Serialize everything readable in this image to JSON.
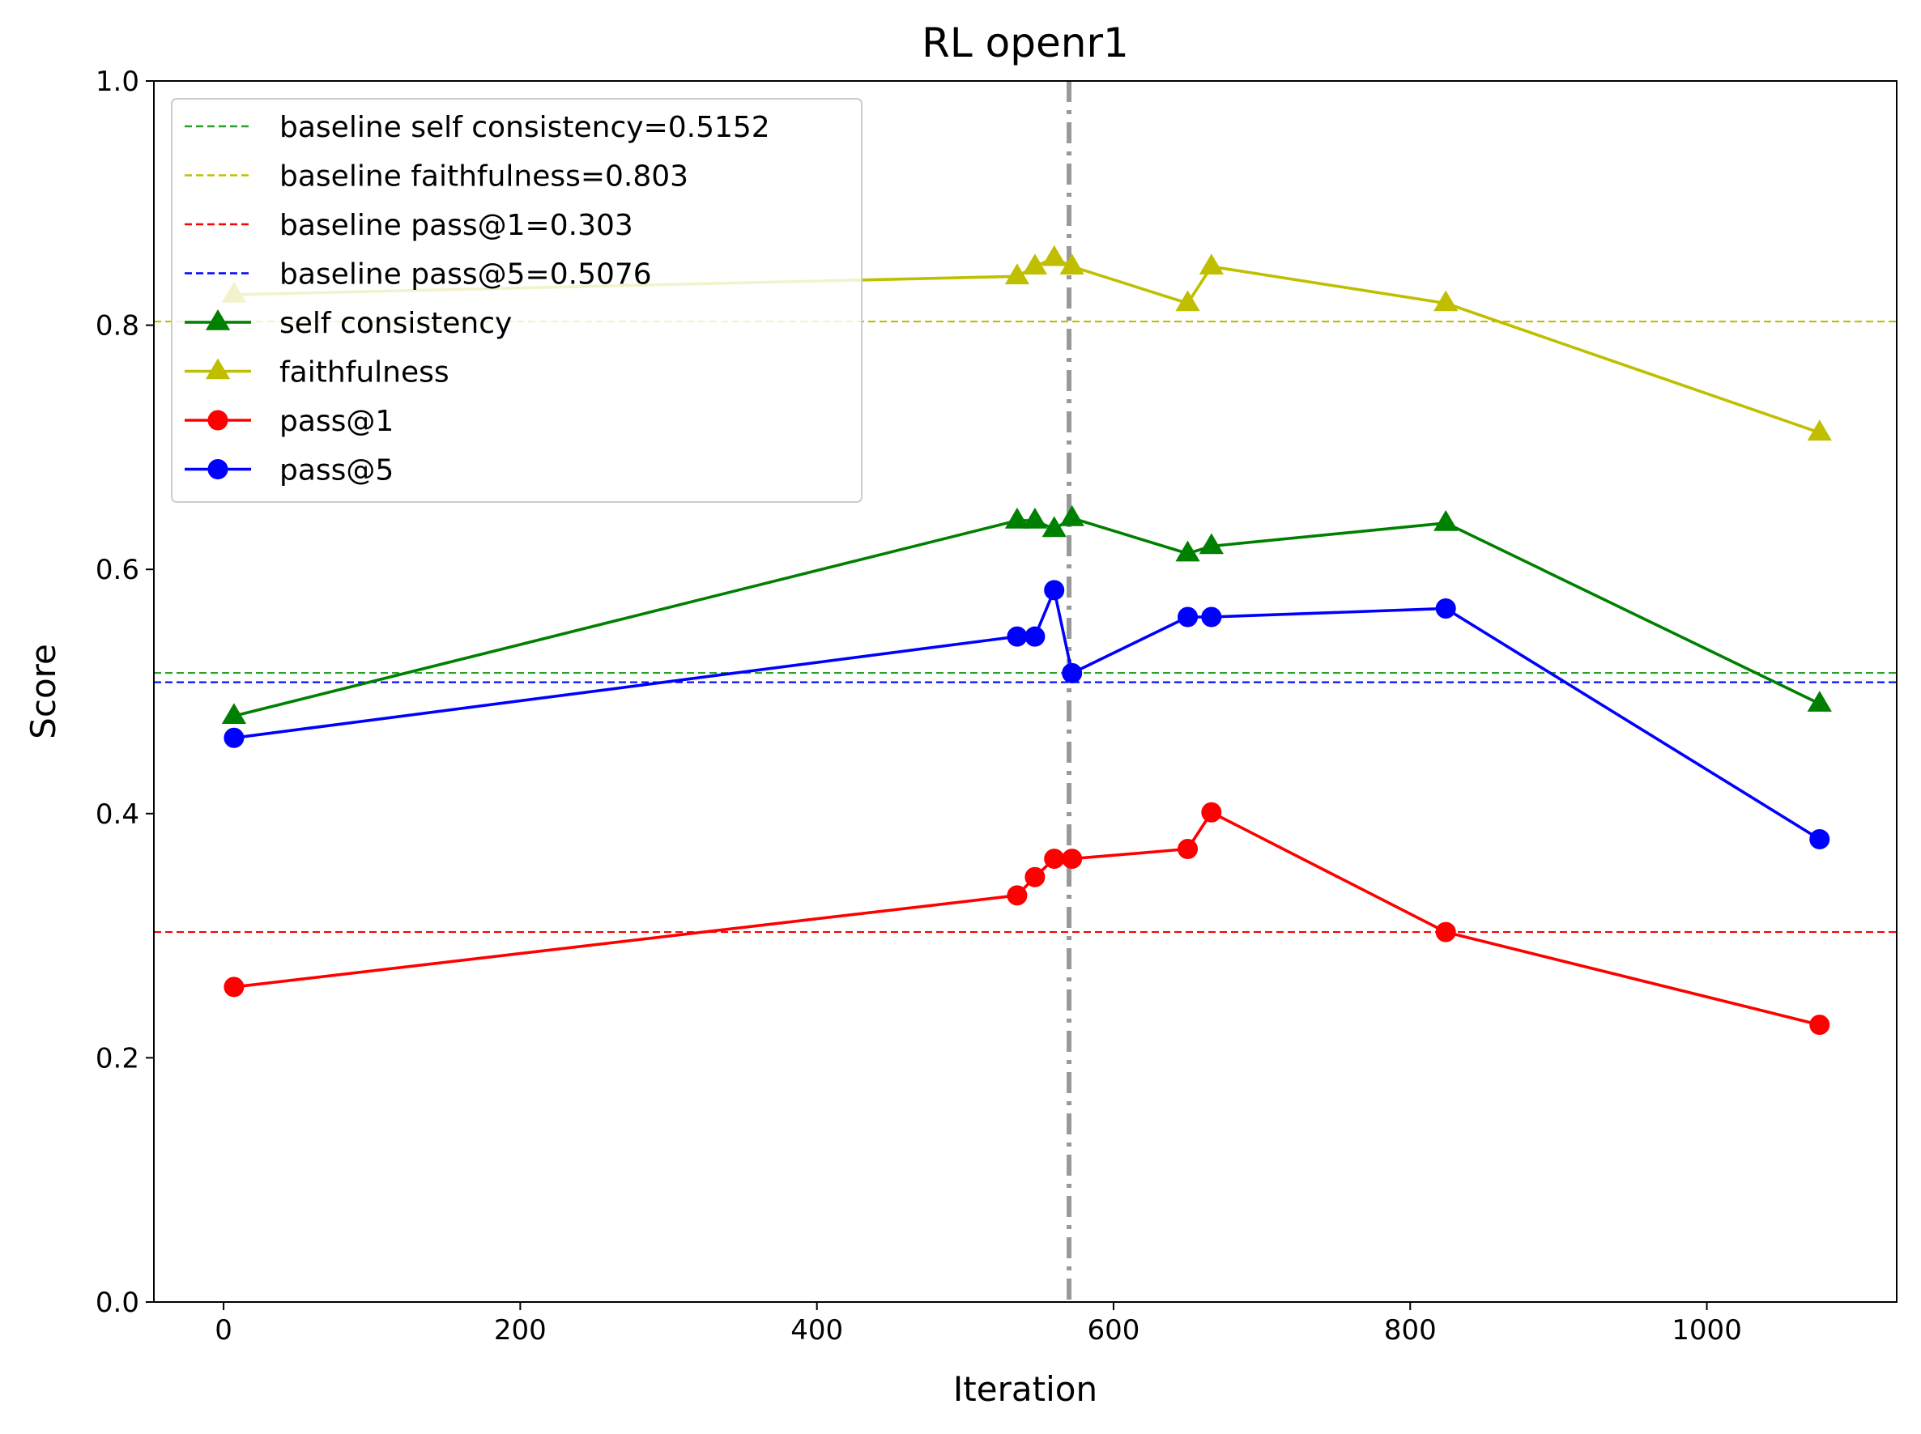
{
  "chart_data": {
    "type": "line",
    "title": "RL openr1",
    "xlabel": "Iteration",
    "ylabel": "Score",
    "xlim": [
      -47,
      1128
    ],
    "ylim": [
      0.0,
      1.0
    ],
    "xticks": [
      0,
      200,
      400,
      600,
      800,
      1000
    ],
    "yticks": [
      0.0,
      0.2,
      0.4,
      0.6,
      0.8,
      1.0
    ],
    "xtick_labels": [
      "0",
      "200",
      "400",
      "600",
      "800",
      "1000"
    ],
    "ytick_labels": [
      "0.0",
      "0.2",
      "0.4",
      "0.6",
      "0.8",
      "1.0"
    ],
    "grid": false,
    "legend_position": "upper-left",
    "vertical_marker": {
      "x": 570,
      "color": "#999999",
      "style": "dash-dot"
    },
    "baselines": [
      {
        "name": "baseline self consistency=0.5152",
        "value": 0.5152,
        "color": "#2ca02c"
      },
      {
        "name": "baseline faithfulness=0.803",
        "value": 0.803,
        "color": "#bfbf00"
      },
      {
        "name": "baseline pass@1=0.303",
        "value": 0.303,
        "color": "#ff0000"
      },
      {
        "name": "baseline pass@5=0.5076",
        "value": 0.5076,
        "color": "#0000ff"
      }
    ],
    "series": [
      {
        "name": "self consistency",
        "color": "#008000",
        "marker": "triangle",
        "x": [
          7,
          535,
          547,
          560,
          572,
          650,
          666,
          824,
          1076
        ],
        "values": [
          0.48,
          0.64,
          0.64,
          0.633,
          0.642,
          0.613,
          0.619,
          0.638,
          0.49
        ]
      },
      {
        "name": "faithfulness",
        "color": "#bfbf00",
        "marker": "triangle",
        "x": [
          7,
          535,
          547,
          560,
          572,
          650,
          666,
          824,
          1076
        ],
        "values": [
          0.825,
          0.84,
          0.848,
          0.855,
          0.848,
          0.818,
          0.848,
          0.818,
          0.712
        ]
      },
      {
        "name": "pass@1",
        "color": "#ff0000",
        "marker": "circle",
        "x": [
          7,
          535,
          547,
          560,
          572,
          650,
          666,
          824,
          1076
        ],
        "values": [
          0.258,
          0.333,
          0.348,
          0.363,
          0.363,
          0.371,
          0.401,
          0.303,
          0.227
        ]
      },
      {
        "name": "pass@5",
        "color": "#0000ff",
        "marker": "circle",
        "x": [
          7,
          535,
          547,
          560,
          572,
          650,
          666,
          824,
          1076
        ],
        "values": [
          0.462,
          0.545,
          0.545,
          0.583,
          0.515,
          0.561,
          0.561,
          0.568,
          0.379
        ]
      }
    ]
  }
}
